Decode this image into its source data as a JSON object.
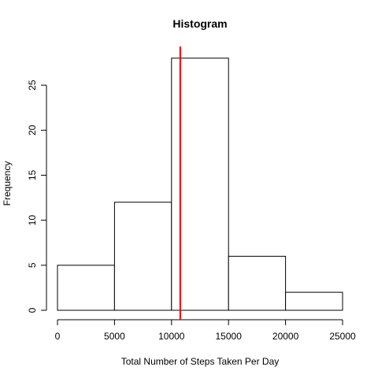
{
  "chart_data": {
    "type": "bar",
    "title": "Histogram",
    "xlabel": "Total Number of Steps Taken Per Day",
    "ylabel": "Frequency",
    "bins": [
      {
        "start": 0,
        "end": 5000,
        "count": 5
      },
      {
        "start": 5000,
        "end": 10000,
        "count": 12
      },
      {
        "start": 10000,
        "end": 15000,
        "count": 28
      },
      {
        "start": 15000,
        "end": 20000,
        "count": 6
      },
      {
        "start": 20000,
        "end": 25000,
        "count": 2
      }
    ],
    "xlim": [
      0,
      25000
    ],
    "ylim": [
      0,
      28
    ],
    "xticks": [
      0,
      5000,
      10000,
      15000,
      20000,
      25000
    ],
    "xtick_labels": [
      "0",
      "5000",
      "10000",
      "15000",
      "20000",
      "25000"
    ],
    "yticks": [
      0,
      5,
      10,
      15,
      20,
      25
    ],
    "ytick_labels": [
      "0",
      "5",
      "10",
      "15",
      "20",
      "25"
    ],
    "reference_line": {
      "x": 10766,
      "color": "#ff0000"
    },
    "bar_fill": "#ffffff",
    "bar_stroke": "#000000",
    "grid": false,
    "legend": "none"
  }
}
